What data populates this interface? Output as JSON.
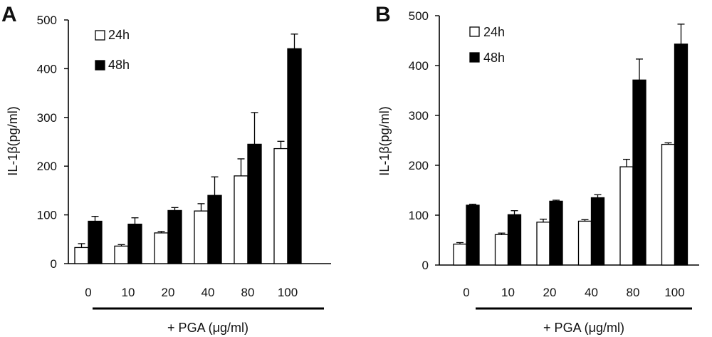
{
  "chart_data": [
    {
      "type": "bar",
      "panel_label": "A",
      "categories": [
        "0",
        "10",
        "20",
        "40",
        "80",
        "100"
      ],
      "series": [
        {
          "name": "24h",
          "values": [
            33,
            36,
            63,
            108,
            180,
            236
          ],
          "errors": [
            8,
            3,
            3,
            15,
            35,
            15
          ],
          "color": "#ffffff"
        },
        {
          "name": "48h",
          "values": [
            87,
            81,
            109,
            140,
            245,
            441
          ],
          "errors": [
            10,
            13,
            6,
            38,
            65,
            30
          ],
          "color": "#000000"
        }
      ],
      "xlabel": "+ PGA (μg/ml)",
      "ylabel": "IL-1β(pg/ml)",
      "yticks": [
        "0",
        "100",
        "200",
        "300",
        "400",
        "500"
      ],
      "ylim": [
        0,
        500
      ],
      "legend_position": "top-left",
      "grid": false
    },
    {
      "type": "bar",
      "panel_label": "B",
      "categories": [
        "0",
        "10",
        "20",
        "40",
        "80",
        "100"
      ],
      "series": [
        {
          "name": "24h",
          "values": [
            42,
            61,
            86,
            88,
            197,
            242
          ],
          "errors": [
            3,
            3,
            6,
            3,
            15,
            3
          ],
          "color": "#ffffff"
        },
        {
          "name": "48h",
          "values": [
            120,
            101,
            128,
            135,
            371,
            443
          ],
          "errors": [
            2,
            8,
            2,
            6,
            42,
            40
          ],
          "color": "#000000"
        }
      ],
      "xlabel": "+ PGA (μg/ml)",
      "ylabel": "IL-1β(pg/ml)",
      "yticks": [
        "0",
        "100",
        "200",
        "300",
        "400",
        "500"
      ],
      "ylim": [
        0,
        500
      ],
      "legend_position": "top-left",
      "grid": false
    }
  ]
}
